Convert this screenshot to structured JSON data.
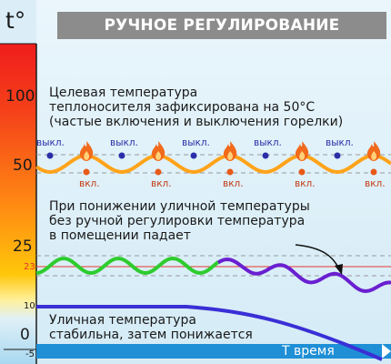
{
  "header": {
    "title": "РУЧНОЕ РЕГУЛИРОВАНИЕ"
  },
  "axis": {
    "y_symbol": "t°",
    "y_ticks": [
      "100",
      "50",
      "25",
      "23",
      "10",
      "0",
      "-5"
    ],
    "x_label": "T время"
  },
  "notes": {
    "target_lines": [
      "Целевая температура",
      "теплоносителя зафиксирована на 50°С",
      "(частые включения и выключения горелки)"
    ],
    "indoor_lines": [
      "При понижении уличной температуры",
      "без ручной регулировки температура",
      "в помещении падает"
    ],
    "outdoor_lines": [
      "Уличная температура",
      "стабильна, затем понижается"
    ]
  },
  "burner": {
    "off_label": "выкл.",
    "on_label": "вкл."
  },
  "colors": {
    "scale_top": "#f01c1c",
    "scale_mid": "#ff7a10",
    "scale_low": "#ffd400",
    "scale_cold": "#a8d8f0",
    "panel": "#dbeef8",
    "coolant_wave": "#ffa31a",
    "indoor_green": "#2ecc2e",
    "indoor_violet": "#6a1fd0",
    "outdoor_line": "#3a2fd6",
    "flame": "#f26a1b",
    "dot_off": "#2a2fa8",
    "dot_on": "#e85a1a"
  },
  "icons": {
    "flame": "flame-icon"
  }
}
